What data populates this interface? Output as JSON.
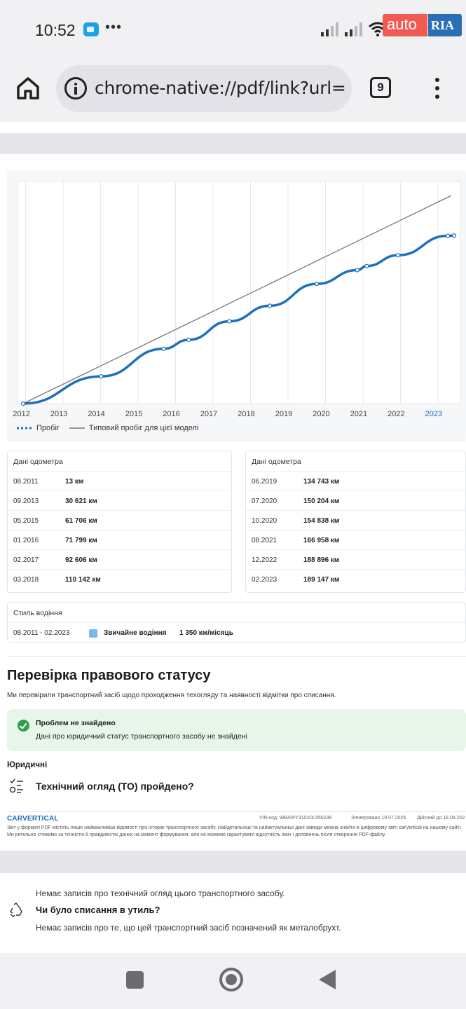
{
  "status_bar": {
    "time": "10:52",
    "notification": "•••",
    "app_logo_auto": "auto",
    "app_logo_ria": "RIA"
  },
  "browser": {
    "url": "chrome-native://pdf/link?url=",
    "tab_count": "9"
  },
  "chart_data": {
    "type": "line",
    "x_ticks": [
      "2012",
      "2013",
      "2014",
      "2015",
      "2016",
      "2017",
      "2018",
      "2019",
      "2020",
      "2021",
      "2022",
      "2023"
    ],
    "highlighted_tick": "2023",
    "series": [
      {
        "name": "Пробіг",
        "color": "#1e6fbd",
        "style": "thick line with point markers",
        "points": [
          {
            "x": "08.2011",
            "y": 13
          },
          {
            "x": "09.2013",
            "y": 30621
          },
          {
            "x": "05.2015",
            "y": 61706
          },
          {
            "x": "01.2016",
            "y": 71799
          },
          {
            "x": "02.2017",
            "y": 92606
          },
          {
            "x": "03.2018",
            "y": 110142
          },
          {
            "x": "06.2019",
            "y": 134743
          },
          {
            "x": "07.2020",
            "y": 150204
          },
          {
            "x": "10.2020",
            "y": 154838
          },
          {
            "x": "08.2021",
            "y": 166958
          },
          {
            "x": "12.2022",
            "y": 188896
          },
          {
            "x": "02.2023",
            "y": 189147
          }
        ]
      },
      {
        "name": "Типовий пробіг для цієї моделі",
        "color": "#777777",
        "style": "thin line",
        "points": [
          {
            "x": "08.2011",
            "y": 0
          },
          {
            "x": "01.2023",
            "y": 234000
          }
        ]
      }
    ],
    "grid": true,
    "legend_position": "bottom-left"
  },
  "odometer_left": {
    "title": "Дані одометра",
    "rows": [
      {
        "date": "08.2011",
        "value": "13 км"
      },
      {
        "date": "09.2013",
        "value": "30 621 км"
      },
      {
        "date": "05.2015",
        "value": "61 706 км"
      },
      {
        "date": "01.2016",
        "value": "71 799 км"
      },
      {
        "date": "02.2017",
        "value": "92 606 км"
      },
      {
        "date": "03.2018",
        "value": "110 142 км"
      }
    ]
  },
  "odometer_right": {
    "title": "Дані одометра",
    "rows": [
      {
        "date": "06.2019",
        "value": "134 743 км"
      },
      {
        "date": "07.2020",
        "value": "150 204 км"
      },
      {
        "date": "10.2020",
        "value": "154 838 км"
      },
      {
        "date": "08.2021",
        "value": "166 958 км"
      },
      {
        "date": "12.2022",
        "value": "188 896 км"
      },
      {
        "date": "02.2023",
        "value": "189 147 км"
      }
    ]
  },
  "driving_style": {
    "title": "Стиль водіння",
    "period": "08.2011 - 02.2023",
    "type": "Звичайне водіння",
    "rate": "1 350 км/місяць",
    "swatch_color": "#7fb6ee"
  },
  "legal": {
    "title": "Перевірка правового статусу",
    "subtitle": "Ми перевірили транспортний засіб щодо проходження техогляду та наявності відмітки про списання.",
    "ok_title": "Проблем не знайдено",
    "ok_text": "Дані про юридичний статус транспортного засобу не знайдені",
    "section": "Юридичні",
    "to_question": "Технічний огляд (ТО) пройдено?"
  },
  "carvertical": {
    "logo": "CARVERTICAL",
    "vin": "VIN-код: WBAWY310X0L550238",
    "generated": "Згенеровано 19.07.2026",
    "valid": "Дійсний до 18.08.202",
    "disclaimer": "Звіт у форматі PDF містить лише найважливіші відомості про історію транспортного засобу. Найдетальніші та найактуальніші дані завжди можна знайти в цифровому звіті carVertical на нашому сайті. Ми ретельно стежимо за точністю й правдивістю даних на момент формування, але не можемо гарантувати відсутність змін і доповнень після створення PDF-файлу."
  },
  "page2": {
    "to_note": "Немає записів про технічний огляд цього транспортного засобу.",
    "scrap_question": "Чи було списання в утиль?",
    "scrap_note": "Немає записів про те, що цей транспортний засіб позначений як металобрухт."
  }
}
